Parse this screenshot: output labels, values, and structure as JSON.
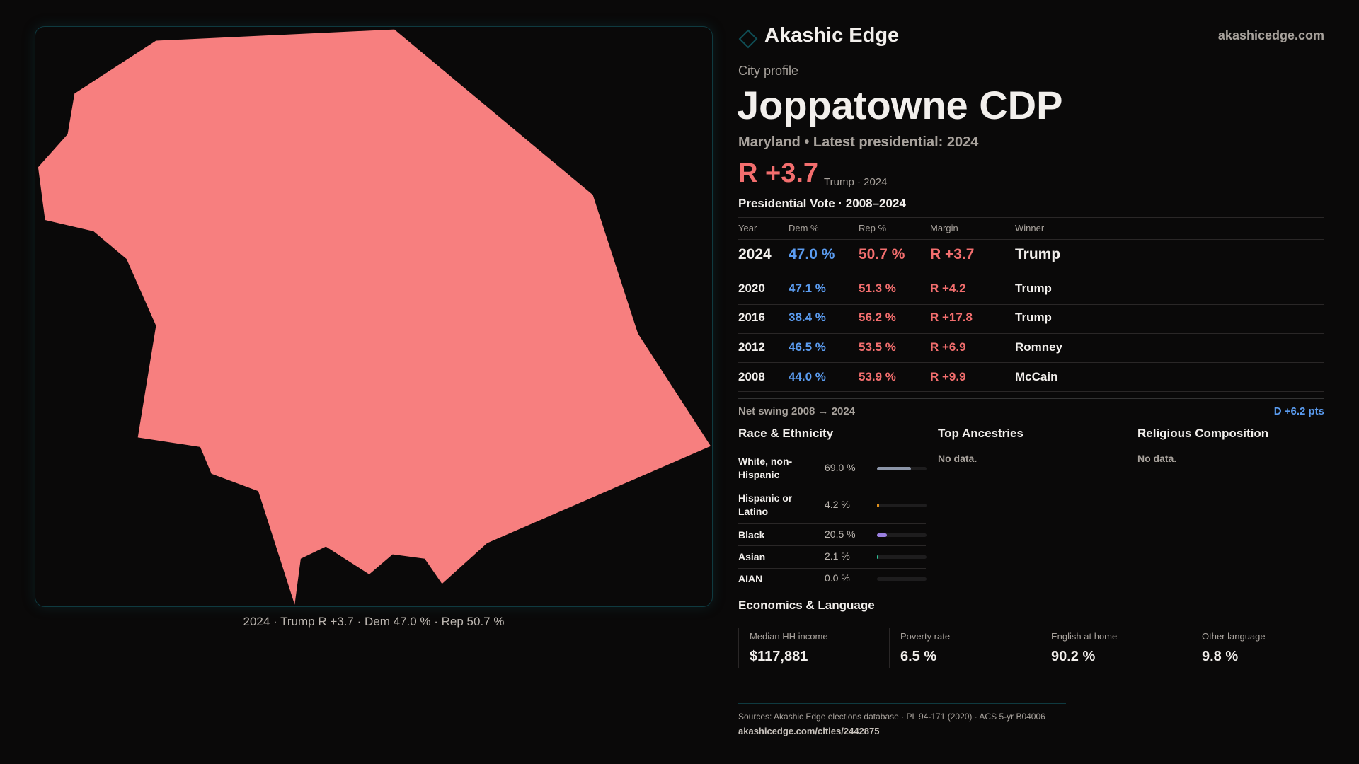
{
  "brand": {
    "name": "Akashic Edge",
    "site": "akashicedge.com"
  },
  "profile": {
    "kicker": "City profile",
    "title": "Joppatowne CDP",
    "subtitle": "Maryland • Latest presidential: 2024",
    "margin": "R +3.7",
    "margin_note": "Trump · 2024"
  },
  "map": {
    "caption": "2024 · Trump R +3.7 · Dem 47.0 % · Rep 50.7 %",
    "fill": "#f77f7f"
  },
  "votes": {
    "title": "Presidential Vote · 2008–2024",
    "headers": [
      "Year",
      "Dem %",
      "Rep %",
      "Margin",
      "Winner"
    ],
    "rows": [
      {
        "year": "2024",
        "dem": "47.0 %",
        "rep": "50.7 %",
        "margin": "R +3.7",
        "winner": "Trump"
      },
      {
        "year": "2020",
        "dem": "47.1 %",
        "rep": "51.3 %",
        "margin": "R +4.2",
        "winner": "Trump"
      },
      {
        "year": "2016",
        "dem": "38.4 %",
        "rep": "56.2 %",
        "margin": "R +17.8",
        "winner": "Trump"
      },
      {
        "year": "2012",
        "dem": "46.5 %",
        "rep": "53.5 %",
        "margin": "R +6.9",
        "winner": "Romney"
      },
      {
        "year": "2008",
        "dem": "44.0 %",
        "rep": "53.9 %",
        "margin": "R +9.9",
        "winner": "McCain"
      }
    ],
    "swing_label": "Net swing 2008 → 2024",
    "swing_value": "D +6.2 pts"
  },
  "race": {
    "title": "Race & Ethnicity",
    "rows": [
      {
        "label": "White, non-Hispanic",
        "value": "69.0 %",
        "pct": 69.0,
        "color": "#8c95a8"
      },
      {
        "label": "Hispanic or Latino",
        "value": "4.2 %",
        "pct": 4.2,
        "color": "#e0901a"
      },
      {
        "label": "Black",
        "value": "20.5 %",
        "pct": 20.5,
        "color": "#9a7fe0"
      },
      {
        "label": "Asian",
        "value": "2.1 %",
        "pct": 2.1,
        "color": "#2fc49a"
      },
      {
        "label": "AIAN",
        "value": "0.0 %",
        "pct": 0.0,
        "color": "#888"
      }
    ]
  },
  "ancestries": {
    "title": "Top Ancestries",
    "empty": "No data."
  },
  "religion": {
    "title": "Religious Composition",
    "empty": "No data."
  },
  "economics": {
    "title": "Economics & Language",
    "stats": [
      {
        "label": "Median HH income",
        "value": "$117,881"
      },
      {
        "label": "Poverty rate",
        "value": "6.5 %"
      },
      {
        "label": "English at home",
        "value": "90.2 %"
      },
      {
        "label": "Other language",
        "value": "9.8 %"
      }
    ]
  },
  "footer": {
    "sources": "Sources: Akashic Edge elections database · PL 94-171 (2020) · ACS 5-yr B04006",
    "url": "akashicedge.com/cities/2442875"
  }
}
